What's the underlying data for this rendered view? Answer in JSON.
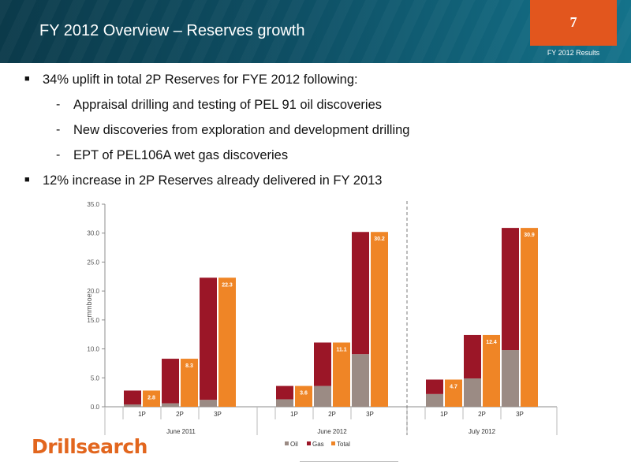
{
  "header": {
    "title": "FY 2012 Overview – Reserves growth",
    "page_number": "7",
    "section_label": "FY 2012 Results"
  },
  "bullets": [
    {
      "text": "34% uplift in total 2P Reserves for FYE 2012 following:",
      "level": 1
    },
    {
      "text": "Appraisal drilling and testing of PEL 91 oil discoveries",
      "level": 2
    },
    {
      "text": "New discoveries from exploration and development drilling",
      "level": 2
    },
    {
      "text": "EPT of PEL106A wet gas discoveries",
      "level": 2
    },
    {
      "text": "12% increase in 2P Reserves already delivered in FY 2013",
      "level": 1
    }
  ],
  "logo": {
    "text": "Drillsearch"
  },
  "chart_data": {
    "type": "bar",
    "ylabel": "mmboe",
    "ylim": [
      0,
      35
    ],
    "yticks": [
      "0.0",
      "5.0",
      "10.0",
      "15.0",
      "20.0",
      "25.0",
      "30.0",
      "35.0"
    ],
    "grid": false,
    "legend_position": "bottom",
    "groups": [
      {
        "label": "June 2011",
        "categories": [
          "1P",
          "2P",
          "3P"
        ],
        "oil": [
          0.4,
          0.6,
          1.2
        ],
        "gas": [
          2.4,
          7.7,
          21.1
        ],
        "total": [
          2.8,
          8.3,
          22.3
        ],
        "total_labels": [
          "2.8",
          "8.3",
          "22.3"
        ]
      },
      {
        "label": "June 2012",
        "categories": [
          "1P",
          "2P",
          "3P"
        ],
        "oil": [
          1.3,
          3.6,
          9.1
        ],
        "gas": [
          2.3,
          7.5,
          21.1
        ],
        "total": [
          3.6,
          11.1,
          30.2
        ],
        "total_labels": [
          "3.6",
          "11.1",
          "30.2"
        ]
      },
      {
        "label": "July 2012",
        "categories": [
          "1P",
          "2P",
          "3P"
        ],
        "oil": [
          2.2,
          4.9,
          9.8
        ],
        "gas": [
          2.5,
          7.5,
          21.1
        ],
        "total": [
          4.7,
          12.4,
          30.9
        ],
        "total_labels": [
          "4.7",
          "12.4",
          "30.9"
        ]
      }
    ],
    "series": [
      {
        "name": "Oil",
        "color": "#9b8b84"
      },
      {
        "name": "Gas",
        "color": "#9b1627"
      },
      {
        "name": "Total",
        "color": "#ef8526"
      }
    ]
  }
}
